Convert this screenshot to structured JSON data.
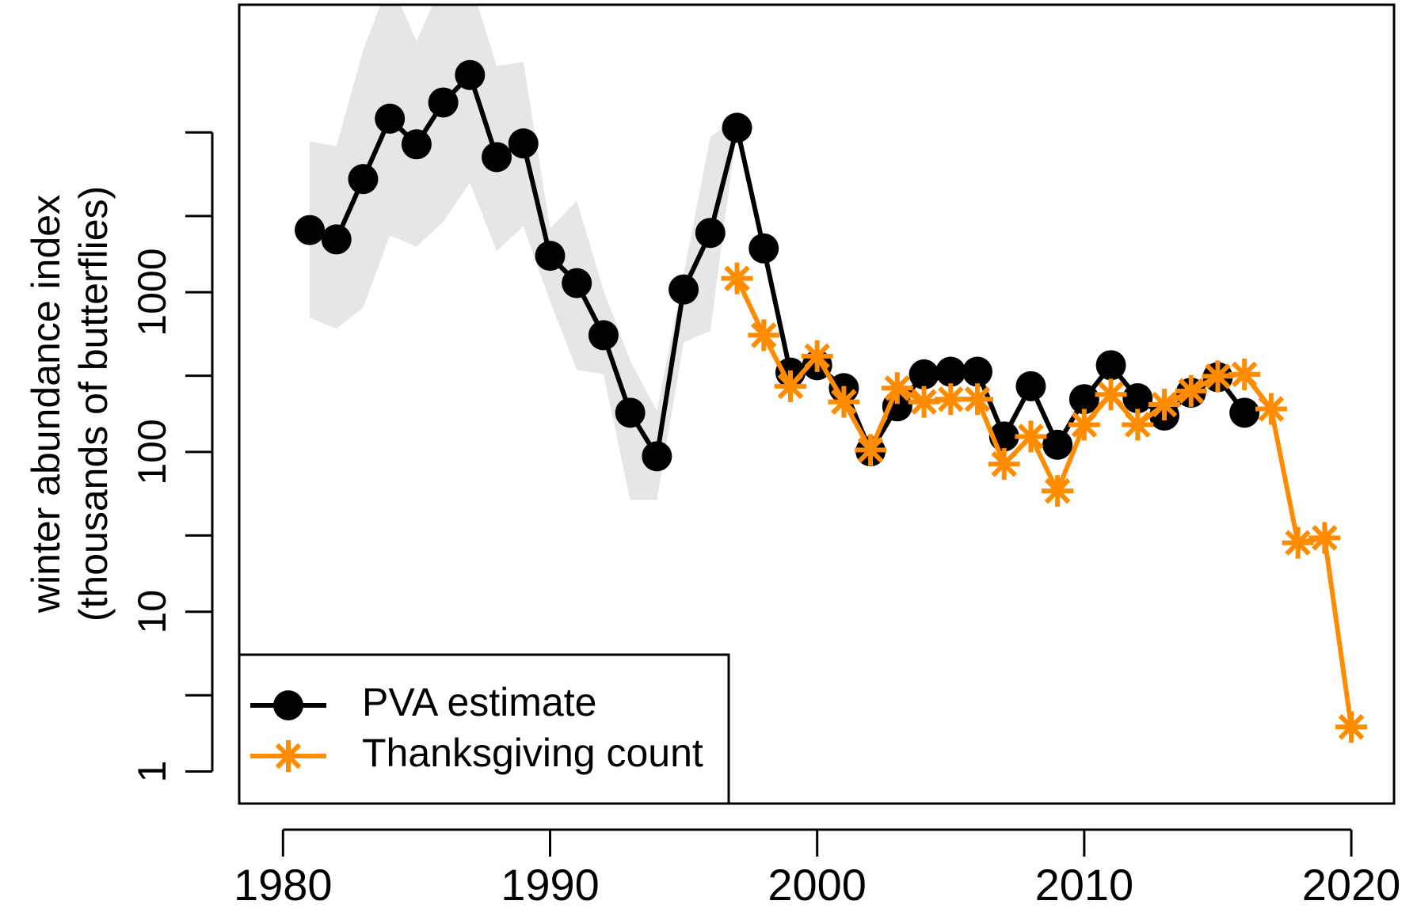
{
  "chart_data": {
    "type": "line",
    "y_label_lines": [
      "winter abundance index",
      "(thousands of butterflies)"
    ],
    "log_y": true,
    "xlim": [
      1978.36,
      2021.6
    ],
    "xticks": [
      1980,
      1990,
      2000,
      2010,
      2020
    ],
    "ylim": [
      0.63,
      63000
    ],
    "yticks": [
      1,
      10,
      100,
      1000
    ],
    "y_minor_ticks": [
      3,
      30,
      300,
      3000,
      10000
    ],
    "legend": "bottomleft",
    "band": {
      "color": "#e6e6e6",
      "x": [
        1981,
        1982,
        1983,
        1984,
        1985,
        1986,
        1987,
        1988,
        1989,
        1990,
        1991,
        1992,
        1993,
        1994,
        1995,
        1996,
        1997
      ],
      "upper": [
        8770,
        8210,
        32700,
        90000,
        37200,
        90000,
        90000,
        26100,
        27600,
        2510,
        3730,
        1030,
        373,
        181,
        1300,
        9360,
        12500
      ],
      "lower": [
        692,
        591,
        800,
        2260,
        1930,
        2760,
        4850,
        1810,
        2580,
        877,
        327,
        306,
        50,
        50,
        485,
        575,
        10700
      ]
    },
    "series": [
      {
        "name": "PVA estimate",
        "color": "#000000",
        "marker": "circle",
        "x": [
          1981,
          1982,
          1983,
          1984,
          1985,
          1986,
          1987,
          1988,
          1989,
          1990,
          1991,
          1992,
          1993,
          1994,
          1995,
          1996,
          1997,
          1998,
          1999,
          2000,
          2001,
          2002,
          2003,
          2004,
          2005,
          2006,
          2007,
          2008,
          2009,
          2010,
          2011,
          2012,
          2013,
          2014,
          2015,
          2016
        ],
        "values": [
          2450,
          2140,
          5110,
          12200,
          8430,
          15400,
          22900,
          7010,
          8540,
          1690,
          1140,
          538,
          176,
          94,
          1040,
          2350,
          10700,
          1880,
          314,
          349,
          251,
          101,
          193,
          306,
          318,
          318,
          125,
          258,
          111,
          214,
          349,
          217,
          169,
          235,
          294,
          176
        ]
      },
      {
        "name": "Thanksgiving count",
        "color": "#ff8c00",
        "marker": "asterisk",
        "x": [
          1997,
          1998,
          1999,
          2000,
          2001,
          2002,
          2003,
          2004,
          2005,
          2006,
          2007,
          2008,
          2009,
          2010,
          2011,
          2012,
          2013,
          2014,
          2015,
          2016,
          2017,
          2018,
          2019,
          2020
        ],
        "values": [
          1220,
          538,
          258,
          398,
          206,
          103,
          251,
          206,
          214,
          214,
          84,
          125,
          57,
          148,
          229,
          148,
          198,
          241,
          298,
          306,
          186,
          27,
          29,
          1.9
        ]
      }
    ]
  }
}
